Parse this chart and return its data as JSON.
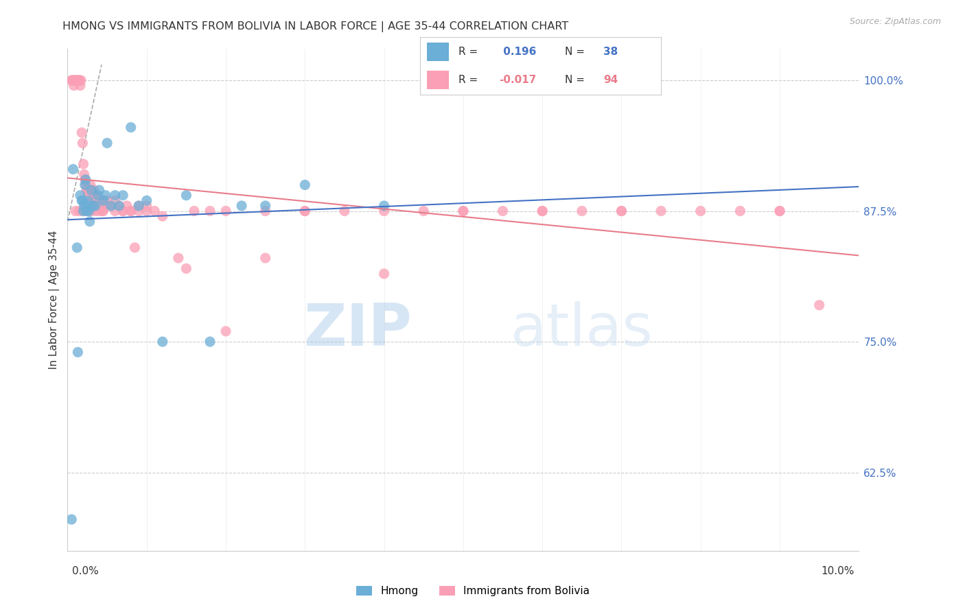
{
  "title": "HMONG VS IMMIGRANTS FROM BOLIVIA IN LABOR FORCE | AGE 35-44 CORRELATION CHART",
  "source": "Source: ZipAtlas.com",
  "ylabel": "In Labor Force | Age 35-44",
  "xlim": [
    0.0,
    10.0
  ],
  "ylim": [
    55.0,
    103.0
  ],
  "yticks": [
    62.5,
    75.0,
    87.5,
    100.0
  ],
  "ytick_labels": [
    "62.5%",
    "75.0%",
    "87.5%",
    "100.0%"
  ],
  "hmong_color": "#6baed6",
  "bolivia_color": "#fa9fb5",
  "hmong_R": 0.196,
  "hmong_N": 38,
  "bolivia_R": -0.017,
  "bolivia_N": 94,
  "watermark_zip": "ZIP",
  "watermark_atlas": "atlas",
  "legend_label_hmong": "Hmong",
  "legend_label_bolivia": "Immigrants from Bolivia",
  "background_color": "#ffffff",
  "grid_color": "#cccccc",
  "axis_color": "#cccccc",
  "title_color": "#333333",
  "right_tick_color": "#4472c4",
  "hmong_x": [
    0.05,
    0.07,
    0.12,
    0.13,
    0.16,
    0.18,
    0.19,
    0.2,
    0.21,
    0.22,
    0.23,
    0.24,
    0.25,
    0.26,
    0.27,
    0.28,
    0.3,
    0.32,
    0.35,
    0.38,
    0.4,
    0.45,
    0.48,
    0.5,
    0.55,
    0.6,
    0.65,
    0.7,
    0.8,
    0.9,
    1.0,
    1.2,
    1.5,
    1.8,
    2.2,
    2.5,
    3.0,
    4.0
  ],
  "hmong_y": [
    58.0,
    91.5,
    84.0,
    74.0,
    89.0,
    88.5,
    88.5,
    87.5,
    88.0,
    90.0,
    90.5,
    87.5,
    88.0,
    88.5,
    87.5,
    86.5,
    89.5,
    88.0,
    88.0,
    89.0,
    89.5,
    88.5,
    89.0,
    94.0,
    88.0,
    89.0,
    88.0,
    89.0,
    95.5,
    88.0,
    88.5,
    75.0,
    89.0,
    75.0,
    88.0,
    88.0,
    90.0,
    88.0
  ],
  "bolivia_x": [
    0.05,
    0.06,
    0.07,
    0.08,
    0.09,
    0.1,
    0.11,
    0.12,
    0.13,
    0.14,
    0.15,
    0.16,
    0.17,
    0.18,
    0.19,
    0.2,
    0.21,
    0.22,
    0.23,
    0.24,
    0.25,
    0.26,
    0.27,
    0.28,
    0.29,
    0.3,
    0.31,
    0.32,
    0.33,
    0.34,
    0.35,
    0.36,
    0.37,
    0.38,
    0.39,
    0.4,
    0.42,
    0.44,
    0.46,
    0.48,
    0.5,
    0.55,
    0.6,
    0.65,
    0.7,
    0.75,
    0.8,
    0.85,
    0.9,
    1.0,
    1.1,
    1.2,
    1.4,
    1.6,
    1.8,
    2.0,
    2.5,
    3.0,
    3.5,
    4.0,
    4.5,
    5.0,
    5.5,
    6.0,
    6.5,
    7.0,
    7.5,
    8.0,
    8.5,
    9.0,
    9.5,
    0.1,
    0.15,
    0.2,
    0.25,
    0.3,
    0.35,
    0.4,
    0.45,
    0.5,
    0.6,
    0.7,
    0.8,
    0.9,
    1.0,
    1.5,
    2.0,
    2.5,
    3.0,
    4.0,
    5.0,
    6.0,
    7.0,
    9.0
  ],
  "bolivia_y": [
    100.0,
    100.0,
    100.0,
    99.5,
    100.0,
    100.0,
    100.0,
    100.0,
    100.0,
    100.0,
    100.0,
    99.5,
    100.0,
    95.0,
    94.0,
    92.0,
    91.0,
    90.5,
    90.0,
    89.5,
    89.5,
    89.0,
    89.5,
    89.5,
    90.0,
    89.5,
    88.5,
    89.0,
    89.5,
    89.0,
    88.0,
    89.0,
    88.5,
    88.0,
    88.5,
    88.5,
    88.0,
    87.5,
    88.5,
    88.0,
    88.0,
    88.0,
    88.5,
    88.0,
    87.5,
    88.0,
    87.5,
    84.0,
    88.0,
    88.0,
    87.5,
    87.0,
    83.0,
    87.5,
    87.5,
    87.5,
    83.0,
    87.5,
    87.5,
    81.5,
    87.5,
    87.5,
    87.5,
    87.5,
    87.5,
    87.5,
    87.5,
    87.5,
    87.5,
    87.5,
    78.5,
    87.5,
    87.5,
    87.5,
    87.5,
    87.5,
    87.5,
    87.5,
    87.5,
    88.5,
    87.5,
    87.5,
    87.5,
    87.5,
    87.5,
    82.0,
    76.0,
    87.5,
    87.5,
    87.5,
    87.5,
    87.5,
    87.5,
    87.5
  ]
}
